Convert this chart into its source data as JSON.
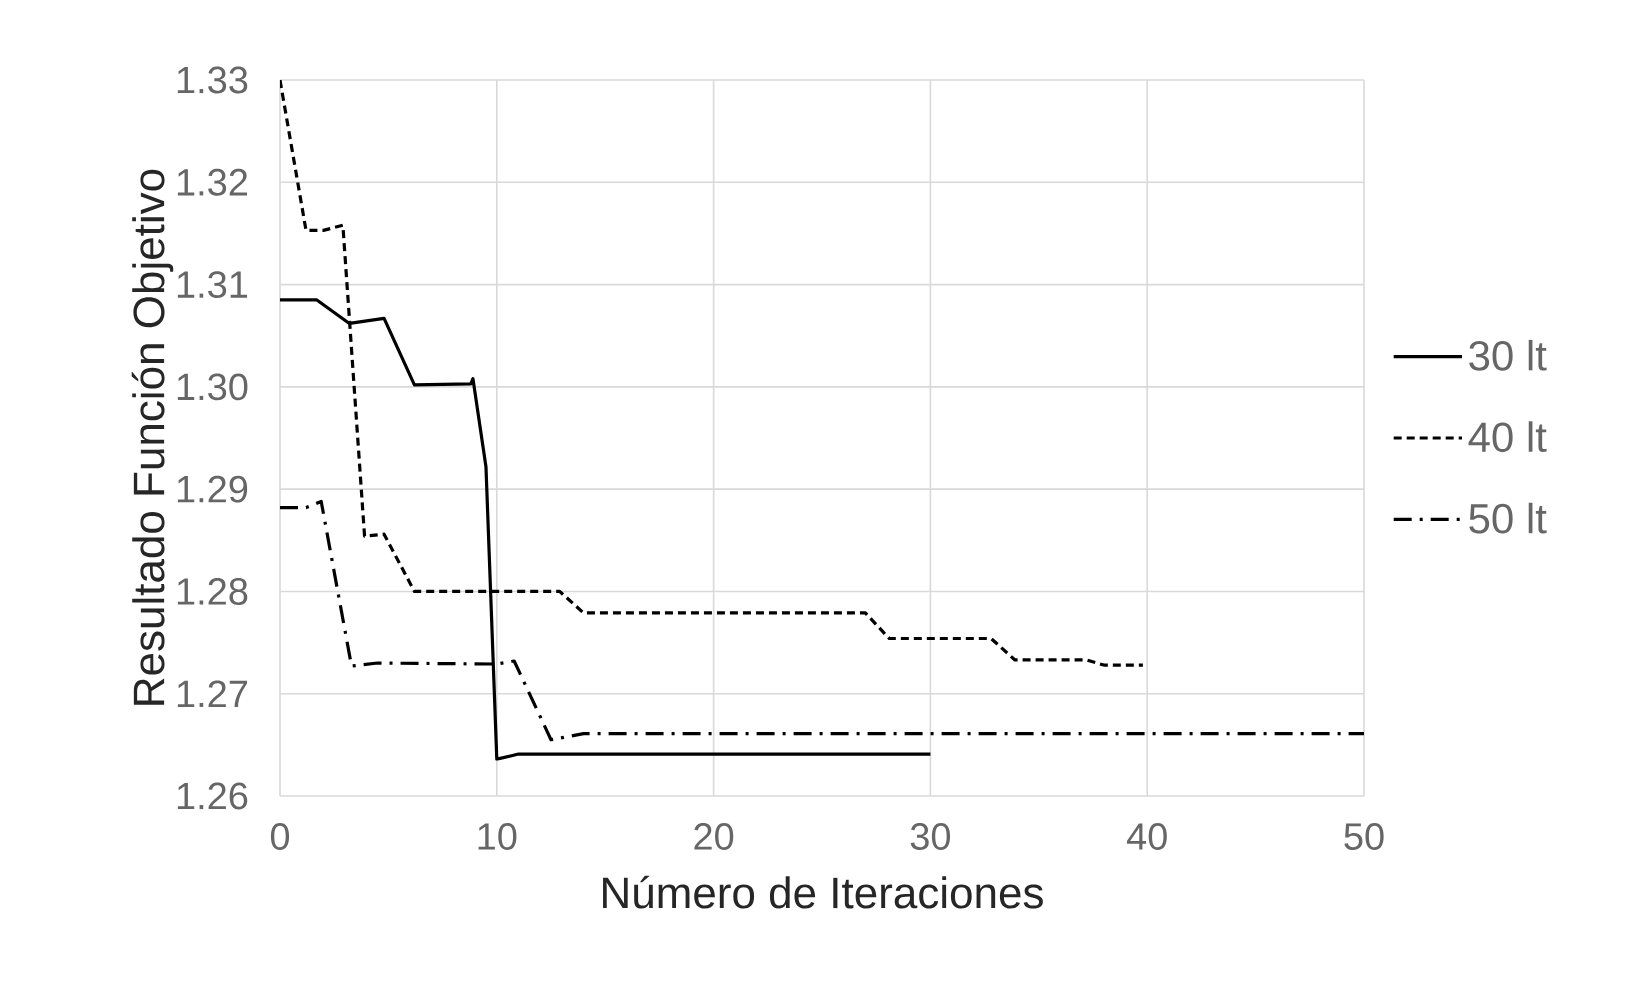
{
  "chart_data": {
    "type": "line",
    "xlabel": "Número de Iteraciones",
    "ylabel": "Resultado Función Objetivo",
    "xlim": [
      0,
      50
    ],
    "xticks": [
      0,
      10,
      20,
      30,
      40,
      50
    ],
    "ylim": [
      1.26,
      1.33
    ],
    "yticks": [
      {
        "value": 1.26,
        "label": "1.26"
      },
      {
        "value": 1.27,
        "label": "1.27"
      },
      {
        "value": 1.28,
        "label": "1.28"
      },
      {
        "value": 1.29,
        "label": "1.29"
      },
      {
        "value": 1.3,
        "label": "1.30"
      },
      {
        "value": 1.31,
        "label": "1.31"
      },
      {
        "value": 1.32,
        "label": "1.32"
      },
      {
        "value": 1.33,
        "label": "1.33"
      }
    ],
    "grid": true,
    "legend": "right",
    "series": [
      {
        "name": "30 lt",
        "color": "#000000",
        "line_style": "solid",
        "x": [
          0,
          1.7,
          3.2,
          4.8,
          6.2,
          8.8,
          8.9,
          9.5,
          10,
          11,
          30
        ],
        "values": [
          1.3085,
          1.3085,
          1.3062,
          1.3067,
          1.3002,
          1.3003,
          1.3008,
          1.2922,
          1.2636,
          1.2641,
          1.2641
        ]
      },
      {
        "name": "40 lt",
        "color": "#000000",
        "line_style": "dashed",
        "x": [
          0,
          1.2,
          2,
          2.9,
          3.9,
          4.8,
          6.2,
          12.9,
          14,
          27,
          28.1,
          32.8,
          33.9,
          37.2,
          38,
          39.8
        ],
        "values": [
          1.33,
          1.3153,
          1.3153,
          1.3158,
          1.2854,
          1.2856,
          1.28,
          1.28,
          1.2779,
          1.2779,
          1.2754,
          1.2754,
          1.2733,
          1.2733,
          1.2728,
          1.2728
        ]
      },
      {
        "name": "50 lt",
        "color": "#000000",
        "line_style": "dashdot",
        "x": [
          0,
          1.2,
          1.9,
          3.3,
          4.5,
          10,
          10.8,
          12.5,
          14,
          50
        ],
        "values": [
          1.2882,
          1.2882,
          1.2888,
          1.2727,
          1.273,
          1.2729,
          1.2732,
          1.2655,
          1.2661,
          1.2661
        ]
      }
    ]
  }
}
